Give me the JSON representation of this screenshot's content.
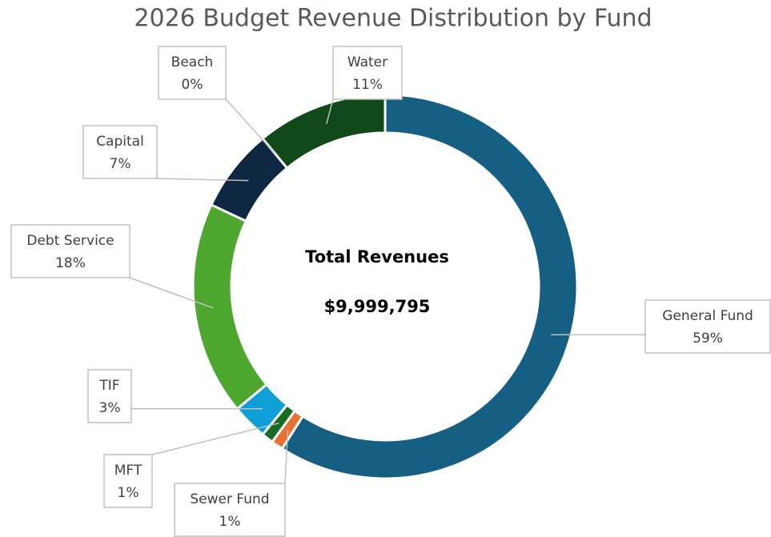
{
  "chart_data": {
    "type": "doughnut",
    "title": "2026 Budget Revenue Distribution by Fund",
    "center_label": {
      "title": "Total Revenues",
      "value": "$9,999,795"
    },
    "categories": [
      "General Fund",
      "Sewer Fund",
      "MFT",
      "TIF",
      "Debt Service",
      "Capital",
      "Beach",
      "Water"
    ],
    "values": [
      59,
      1,
      1,
      3,
      18,
      7,
      0,
      11
    ],
    "value_labels": [
      "59%",
      "1%",
      "1%",
      "3%",
      "18%",
      "7%",
      "0%",
      "11%"
    ],
    "colors": [
      "#156082",
      "#e97132",
      "#196b24",
      "#0f9ed5",
      "#4ea72e",
      "#0e2841",
      "#a02b93",
      "#104a1a"
    ]
  }
}
